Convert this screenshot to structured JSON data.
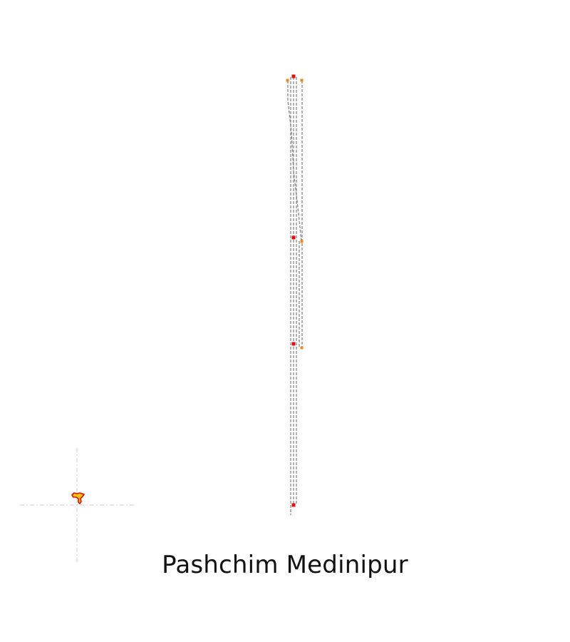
{
  "map": {
    "title": "Pashchim Medinipur",
    "colors": {
      "route_line": "#888888",
      "station_primary": "#e01010",
      "station_secondary": "#f08a1c",
      "crosshair": "#cccccc",
      "locator_stroke": "#e01010",
      "locator_fill": "#f2c40f"
    }
  }
}
